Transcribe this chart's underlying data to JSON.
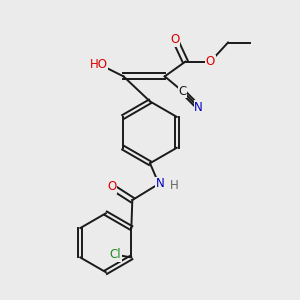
{
  "bg_color": "#ebebeb",
  "bond_color": "#1a1a1a",
  "atom_colors": {
    "O": "#dd0000",
    "N": "#0000bb",
    "Cl": "#228b22",
    "C": "#1a1a1a",
    "H": "#666666"
  },
  "font_size": 8.5
}
